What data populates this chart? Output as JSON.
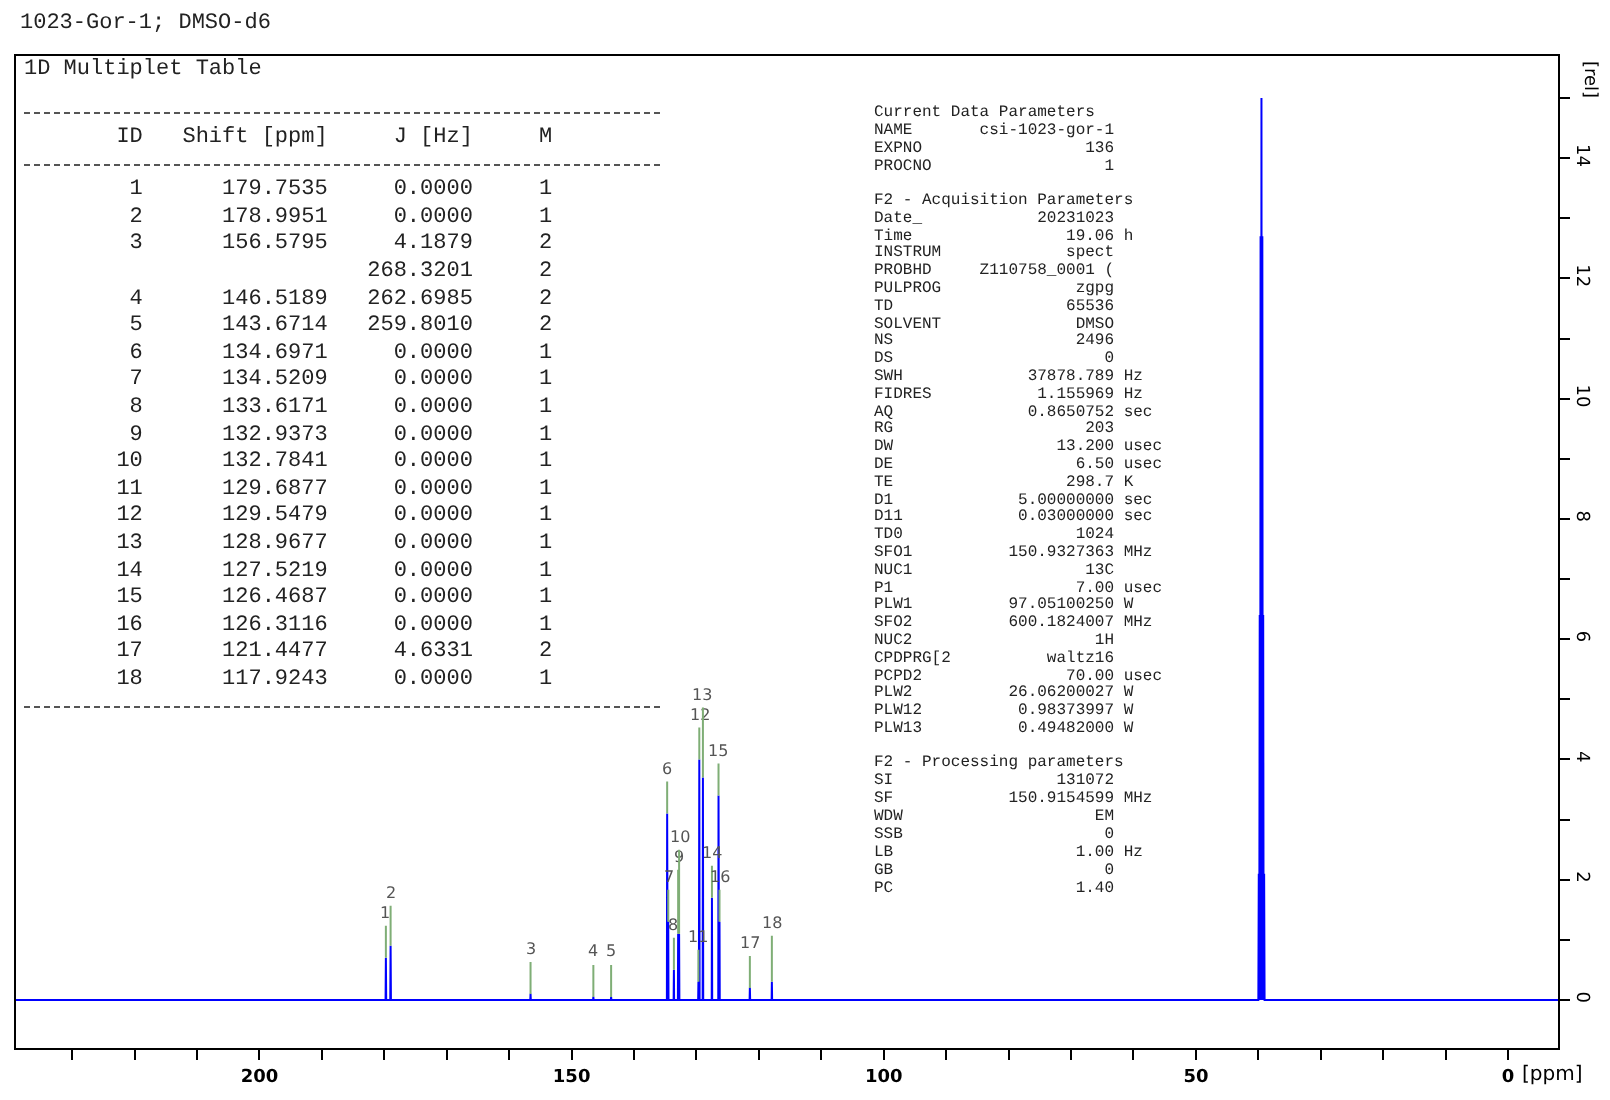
{
  "chart_data": [
    {
      "type": "line",
      "title": "1023-Gor-1; DMSO-d6",
      "xlabel": "[ppm]",
      "ylabel": "[rel]",
      "xlim": [
        239,
        -8
      ],
      "ylim": [
        -0.8,
        15.7
      ],
      "xticks": [
        {
          "value": 230,
          "label": null
        },
        {
          "value": 220,
          "label": null
        },
        {
          "value": 210,
          "label": null
        },
        200,
        {
          "value": 190,
          "label": null
        },
        {
          "value": 180,
          "label": null
        },
        {
          "value": 170,
          "label": null
        },
        {
          "value": 160,
          "label": null
        },
        150,
        {
          "value": 140,
          "label": null
        },
        {
          "value": 130,
          "label": null
        },
        {
          "value": 120,
          "label": null
        },
        {
          "value": 110,
          "label": null
        },
        100,
        {
          "value": 90,
          "label": null
        },
        {
          "value": 80,
          "label": null
        },
        {
          "value": 70,
          "label": null
        },
        {
          "value": 60,
          "label": null
        },
        50,
        {
          "value": 40,
          "label": null
        },
        {
          "value": 30,
          "label": null
        },
        {
          "value": 20,
          "label": null
        },
        {
          "value": 10,
          "label": null
        },
        0
      ],
      "yticks": [
        0,
        {
          "value": 1,
          "label": null
        },
        2,
        {
          "value": 3,
          "label": null
        },
        4,
        {
          "value": 5,
          "label": null
        },
        6,
        {
          "value": 7,
          "label": null
        },
        8,
        {
          "value": 9,
          "label": null
        },
        10,
        {
          "value": 11,
          "label": null
        },
        12,
        {
          "value": 13,
          "label": null
        },
        14,
        {
          "value": 15,
          "label": null
        }
      ],
      "grid": false,
      "series": [
        {
          "color": "#0000ff",
          "x": [
            239,
            179.8,
            179.7535,
            179.7,
            179.05,
            178.9951,
            178.94,
            156.62,
            156.5795,
            156.54,
            146.56,
            146.5189,
            146.48,
            143.71,
            143.6714,
            143.63,
            134.74,
            134.6971,
            134.61,
            134.5209,
            134.48,
            133.66,
            133.6171,
            133.58,
            132.98,
            132.9373,
            132.86,
            132.7841,
            132.74,
            129.73,
            129.6877,
            129.62,
            129.5479,
            129.5,
            129.01,
            128.9677,
            128.92,
            127.56,
            127.5219,
            127.48,
            126.51,
            126.4687,
            126.39,
            126.3116,
            126.27,
            121.49,
            121.4477,
            121.4,
            117.96,
            117.9243,
            117.88,
            40.0,
            39.93,
            39.86,
            39.78,
            39.71,
            39.64,
            39.57,
            39.5,
            39.43,
            39.36,
            39.29,
            39.22,
            39.15,
            39.07,
            39.0,
            -8
          ],
          "values": [
            0,
            0,
            0.7,
            0,
            0,
            0.9,
            0,
            0,
            0.1,
            0,
            0,
            0.05,
            0,
            0,
            0.05,
            0,
            0,
            3.1,
            0,
            1.3,
            0,
            0,
            0.5,
            0,
            0,
            1.1,
            0,
            1.1,
            0,
            0,
            0.3,
            0,
            4.0,
            0,
            0,
            3.7,
            0,
            0,
            1.7,
            0,
            0,
            3.4,
            0,
            1.3,
            0,
            0,
            0.2,
            0,
            0,
            0.3,
            0,
            0,
            2.1,
            0,
            6.4,
            0,
            12.7,
            0,
            15.0,
            0,
            12.7,
            0,
            6.4,
            0,
            2.1,
            0,
            0
          ]
        }
      ],
      "annotations": [
        {
          "text": "1",
          "x": 179.7535,
          "y": 0.7
        },
        {
          "text": "2",
          "x": 178.9951,
          "y": 0.9
        },
        {
          "text": "3",
          "x": 156.5795,
          "y": 0.1
        },
        {
          "text": "4",
          "x": 146.5189,
          "y": 0.05
        },
        {
          "text": "5",
          "x": 143.6714,
          "y": 0.05
        },
        {
          "text": "6",
          "x": 134.6971,
          "y": 3.1
        },
        {
          "text": "7",
          "x": 134.5209,
          "y": 1.3
        },
        {
          "text": "8",
          "x": 133.6171,
          "y": 0.5
        },
        {
          "text": "9",
          "x": 132.9373,
          "y": 1.1
        },
        {
          "text": "10",
          "x": 132.7841,
          "y": 1.1
        },
        {
          "text": "11",
          "x": 129.6877,
          "y": 0.3
        },
        {
          "text": "12",
          "x": 129.5479,
          "y": 4.0
        },
        {
          "text": "13",
          "x": 128.9677,
          "y": 3.7
        },
        {
          "text": "14",
          "x": 127.5219,
          "y": 1.7
        },
        {
          "text": "15",
          "x": 126.4687,
          "y": 3.4
        },
        {
          "text": "16",
          "x": 126.3116,
          "y": 1.3
        },
        {
          "text": "17",
          "x": 121.4477,
          "y": 0.2
        },
        {
          "text": "18",
          "x": 117.9243,
          "y": 0.3
        }
      ]
    },
    {
      "type": "other",
      "title": "1D Multiplet Table",
      "annotations": [
        "ID  Shift [ppm]  J [Hz]  M",
        "1  179.7535  0.0000  1",
        "2  178.9951  0.0000  1",
        "3  156.5795  4.1879  2",
        "268.3201  2",
        "4  146.5189  262.6985  2",
        "5  143.6714  259.8010  2",
        "6  134.6971  0.0000  1",
        "7  134.5209  0.0000  1",
        "8  133.6171  0.0000  1",
        "9  132.9373  0.0000  1",
        "10  132.7841  0.0000  1",
        "11  129.6877  0.0000  1",
        "12  129.5479  0.0000  1",
        "13  128.9677  0.0000  1",
        "14  127.5219  0.0000  1",
        "15  126.4687  0.0000  1",
        "16  126.3116  0.0000  1",
        "17  121.4477  4.6331  2",
        "18  117.9243  0.0000  1"
      ]
    },
    {
      "type": "other",
      "title": "Current Data Parameters",
      "annotations": [
        "NAME  csi-1023-gor-1",
        "EXPNO  136",
        "PROCNO  1"
      ]
    },
    {
      "type": "other",
      "title": "F2 - Acquisition Parameters",
      "annotations": [
        "Date_  20231023",
        "Time  19.06  h",
        "INSTRUM  spect",
        "PROBHD  Z110758_0001 (",
        "PULPROG  zgpg",
        "TD  65536",
        "SOLVENT  DMSO",
        "NS  2496",
        "DS  0",
        "SWH  37878.789  Hz",
        "FIDRES  1.155969  Hz",
        "AQ  0.8650752  sec",
        "RG  203",
        "DW  13.200  usec",
        "DE  6.50  usec",
        "TE  298.7  K",
        "D1  5.00000000  sec",
        "D11  0.03000000  sec",
        "TD0  1024",
        "SFO1  150.9327363  MHz",
        "NUC1  13C",
        "P1  7.00  usec",
        "PLW1  97.05100250  W",
        "SFO2  600.1824007  MHz",
        "NUC2  1H",
        "CPDPRG[2  waltz16",
        "PCPD2  70.00  usec",
        "PLW2  26.06200027  W",
        "PLW12  0.98373997  W",
        "PLW13  0.49482000  W"
      ]
    },
    {
      "type": "other",
      "title": "F2 - Processing parameters",
      "annotations": [
        "SI  131072",
        "SF  150.9154599  MHz",
        "WDW  EM",
        "SSB  0",
        "LB  1.00  Hz",
        "GB  0",
        "PC  1.40"
      ]
    }
  ]
}
